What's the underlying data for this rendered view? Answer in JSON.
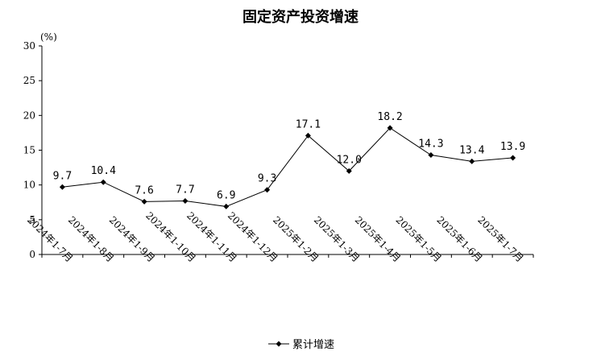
{
  "chart_data": {
    "type": "line",
    "title": "固定资产投资增速",
    "ylabel": "(%)",
    "xlabel": "",
    "ylim": [
      0,
      30
    ],
    "yticks": [
      0,
      5,
      10,
      15,
      20,
      25,
      30
    ],
    "categories": [
      "2024年1-7月",
      "2024年1-8月",
      "2024年1-9月",
      "2024年1-10月",
      "2024年1-11月",
      "2024年1-12月",
      "2025年1-2月",
      "2025年1-3月",
      "2025年1-4月",
      "2025年1-5月",
      "2025年1-6月",
      "2025年1-7月"
    ],
    "series": [
      {
        "name": "累计增速",
        "values": [
          9.7,
          10.4,
          7.6,
          7.7,
          6.9,
          9.3,
          17.1,
          12.0,
          18.2,
          14.3,
          13.4,
          13.9
        ],
        "labels": [
          "9.7",
          "10.4",
          "7.6",
          "7.7",
          "6.9",
          "9.3",
          "17.1",
          "12.0",
          "18.2",
          "14.3",
          "13.4",
          "13.9"
        ]
      }
    ],
    "grid": false,
    "legend_position": "bottom-center",
    "colors": {
      "line": "#000000",
      "axis": "#000000"
    },
    "marker": "diamond"
  }
}
